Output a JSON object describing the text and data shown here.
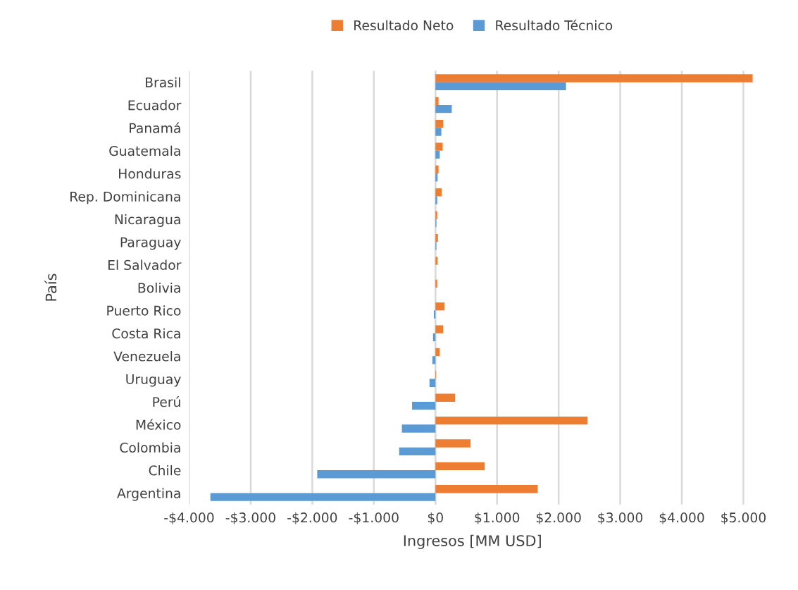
{
  "chart_data": {
    "type": "bar",
    "orientation": "horizontal",
    "xlabel": "Ingresos [MM USD]",
    "ylabel": "País",
    "categories": [
      "Brasil",
      "Ecuador",
      "Panamá",
      "Guatemala",
      "Honduras",
      "Rep. Dominicana",
      "Nicaragua",
      "Paraguay",
      "El Salvador",
      "Bolivia",
      "Puerto Rico",
      "Costa Rica",
      "Venezuela",
      "Uruguay",
      "Perú",
      "México",
      "Colombia",
      "Chile",
      "Argentina"
    ],
    "series": [
      {
        "name": "Resultado Neto",
        "color": "#ed7d31",
        "values": [
          5150,
          50,
          125,
          117,
          50,
          100,
          28,
          40,
          35,
          28,
          145,
          125,
          70,
          10,
          320,
          2470,
          570,
          800,
          1660
        ]
      },
      {
        "name": "Resultado Técnico",
        "color": "#5b9bd5",
        "values": [
          2120,
          265,
          95,
          70,
          35,
          28,
          15,
          15,
          0,
          0,
          -27,
          -40,
          -50,
          -97,
          -380,
          -545,
          -590,
          -1920,
          -3655
        ]
      }
    ],
    "xlim": [
      -4000,
      5200
    ],
    "xticks": [
      {
        "value": -4000,
        "label": "-$4.000"
      },
      {
        "value": -3000,
        "label": "-$3.000"
      },
      {
        "value": -2000,
        "label": "-$2.000"
      },
      {
        "value": -1000,
        "label": "-$1.000"
      },
      {
        "value": 0,
        "label": "$0"
      },
      {
        "value": 1000,
        "label": "$1.000"
      },
      {
        "value": 2000,
        "label": "$2.000"
      },
      {
        "value": 3000,
        "label": "$3.000"
      },
      {
        "value": 4000,
        "label": "$4.000"
      },
      {
        "value": 5000,
        "label": "$5.000"
      }
    ],
    "grid": "x",
    "legend": "top"
  }
}
